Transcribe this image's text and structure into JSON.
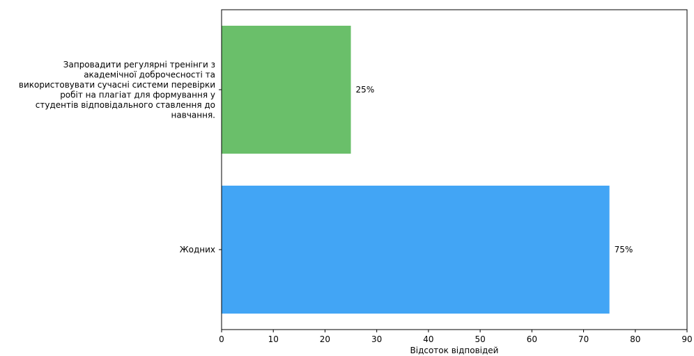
{
  "chart_data": {
    "type": "bar",
    "orientation": "horizontal",
    "categories": [
      "Запровадити регулярні тренінги з академічної доброчесності та використовувати сучасні системи перевірки робіт на плагіат для формування у студентів відповідального ставлення до навчання.",
      "Жодних"
    ],
    "category_label_lines": [
      [
        "Запровадити регулярні тренінги з",
        "академічної доброчесності та",
        "використовувати сучасні системи перевірки",
        "робіт на плагіат для формування у",
        "студентів відповідального ставлення до",
        "навчання."
      ],
      [
        "Жодних"
      ]
    ],
    "values": [
      25,
      75
    ],
    "data_labels": [
      "25%",
      "75%"
    ],
    "colors": [
      "#6abf6a",
      "#42a5f5"
    ],
    "xlabel": "Відсоток відповідей",
    "ylabel": "",
    "title": "",
    "xlim": [
      0,
      90
    ],
    "xticks": [
      0,
      10,
      20,
      30,
      40,
      50,
      60,
      70,
      80,
      90
    ],
    "grid": false,
    "legend": "none"
  }
}
